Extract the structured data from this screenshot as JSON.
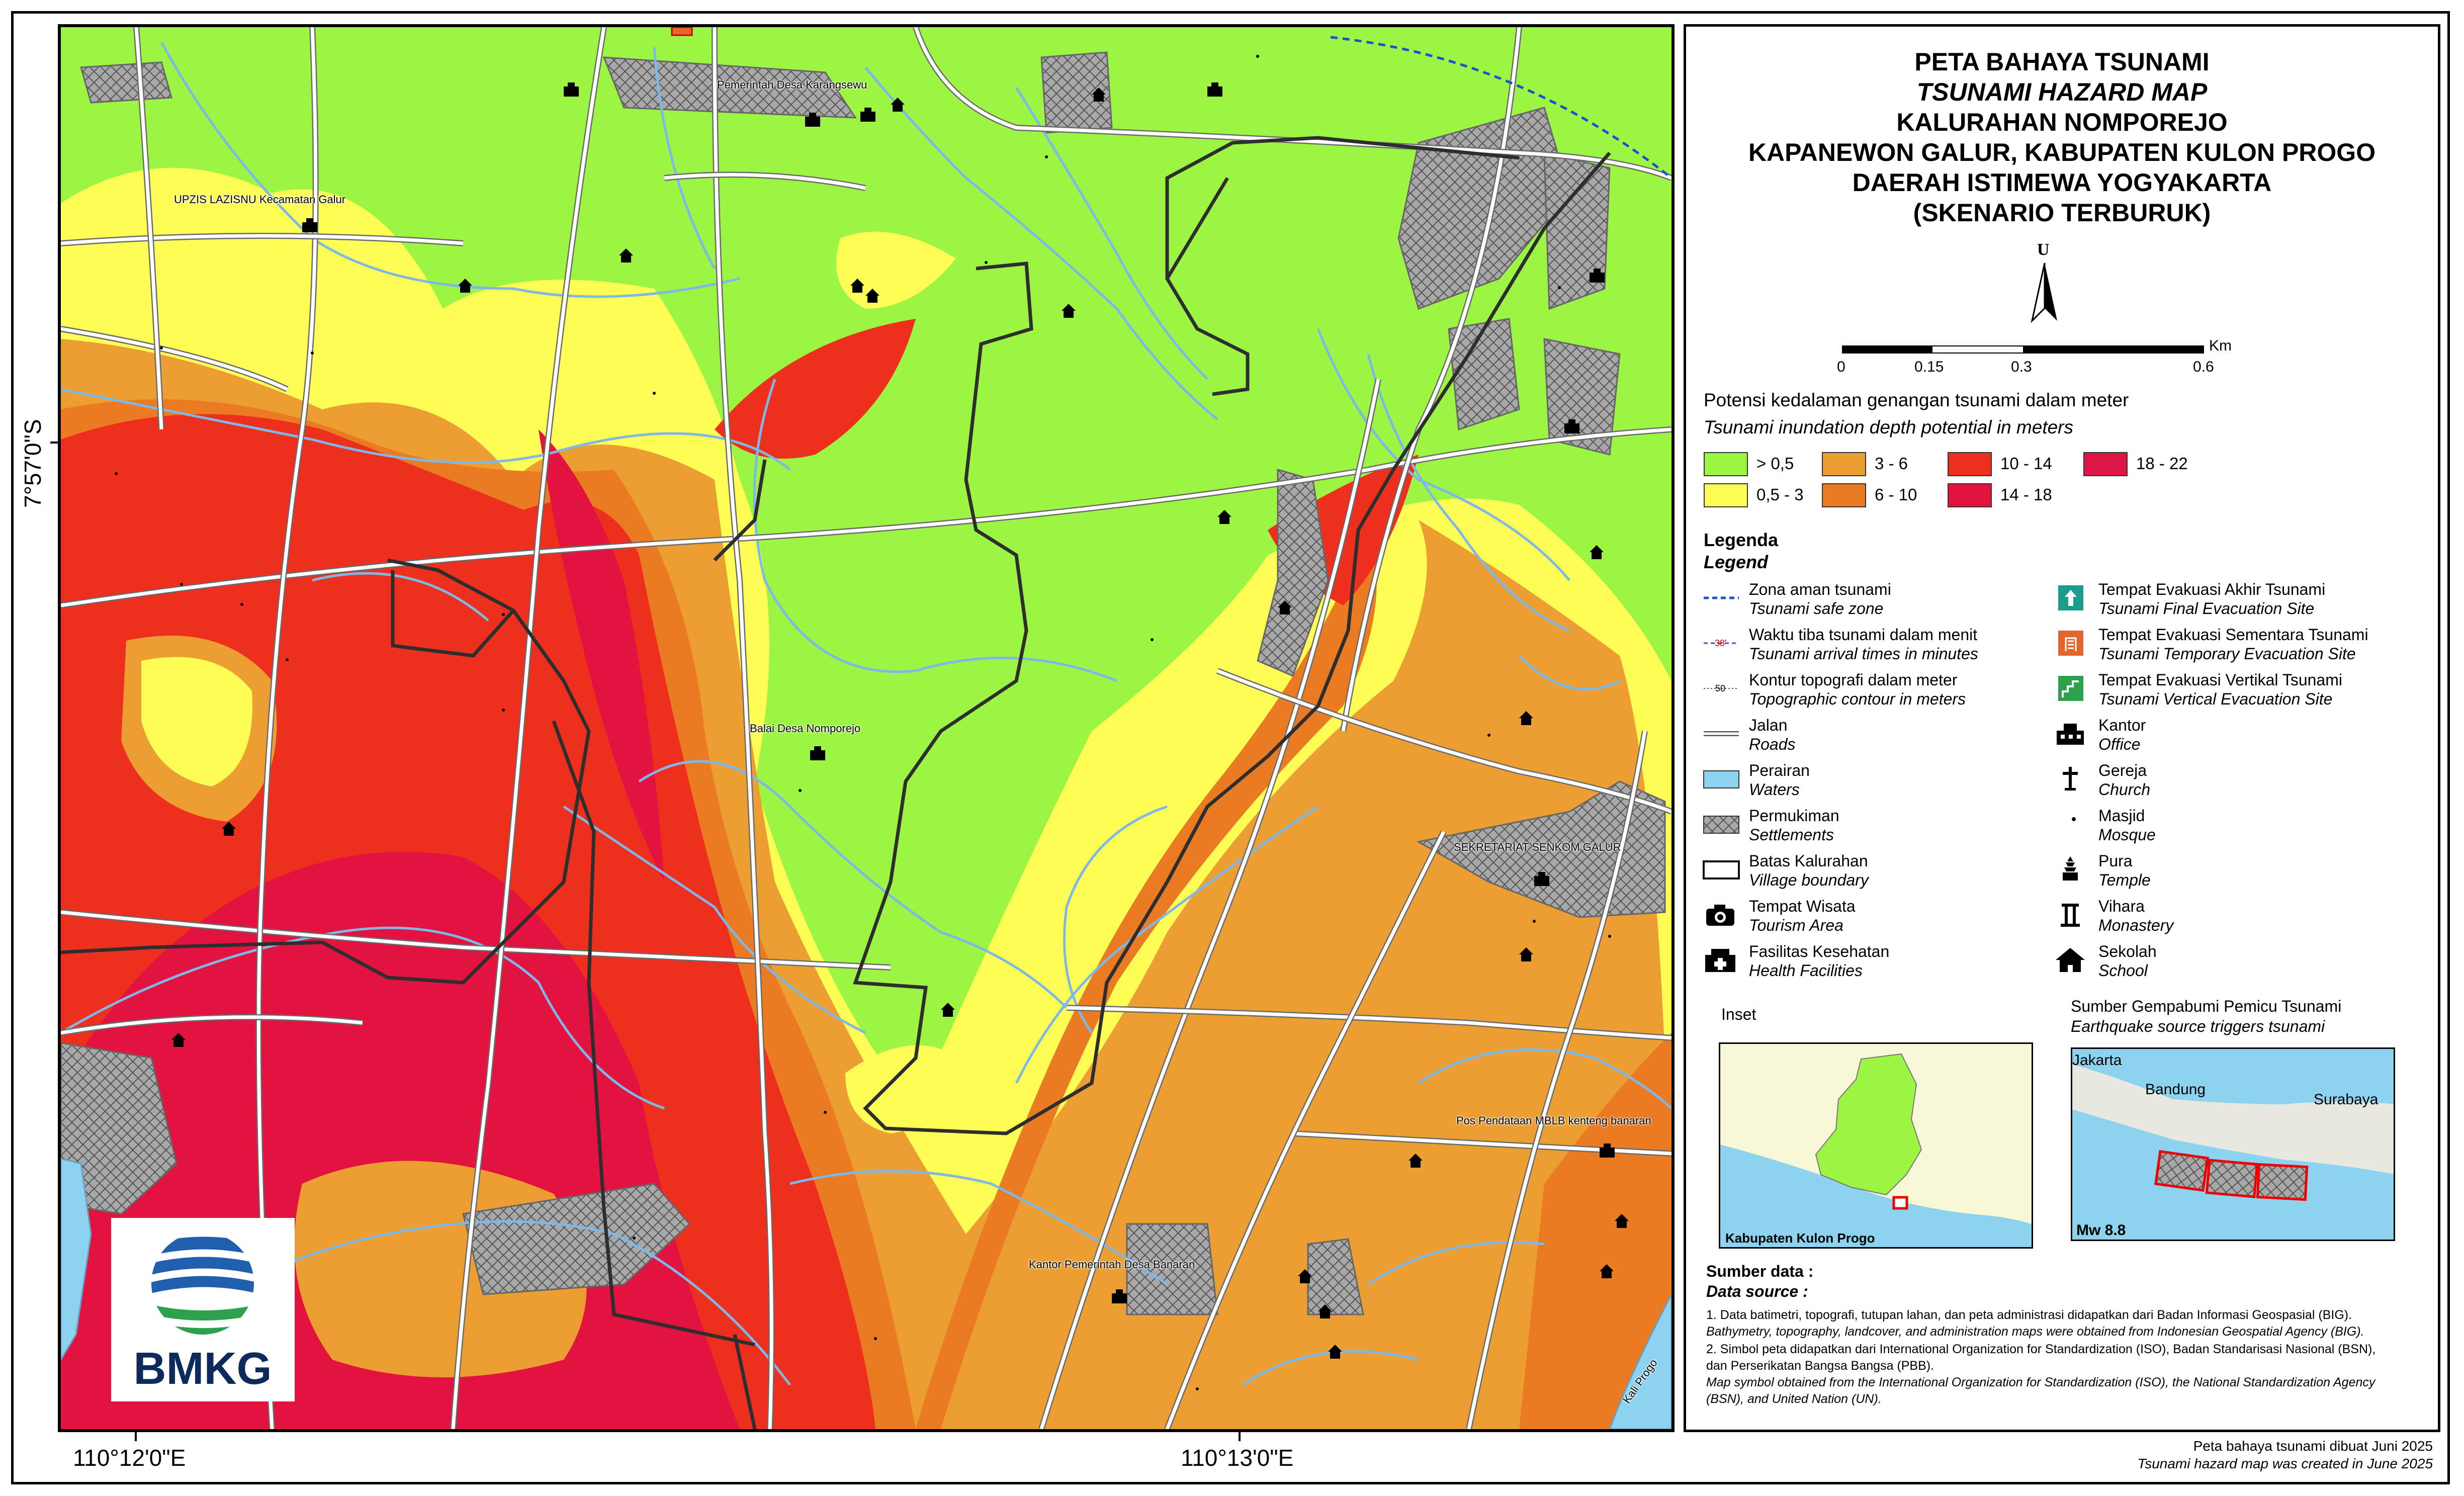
{
  "title": {
    "line1": "PETA BAHAYA TSUNAMI",
    "line2": "TSUNAMI HAZARD MAP",
    "line3": "KALURAHAN NOMPOREJO",
    "line4": "KAPANEWON GALUR, KABUPATEN KULON PROGO",
    "line5": "DAERAH ISTIMEWA YOGYAKARTA",
    "line6": "(SKENARIO TERBURUK)"
  },
  "north_arrow": "U",
  "scale": {
    "ticks": [
      "0",
      "0.15",
      "0.3",
      "0.6"
    ],
    "unit": "Km"
  },
  "coordinates": {
    "lat": "7°57'0\"S",
    "lon_left": "110°12'0\"E",
    "lon_right": "110°13'0\"E"
  },
  "depth_legend": {
    "heading": "Potensi kedalaman genangan tsunami dalam meter",
    "heading_en": "Tsunami inundation depth potential in meters",
    "classes": [
      {
        "label": "> 0,5",
        "color": "#9cf542"
      },
      {
        "label": "0,5 - 3",
        "color": "#fdfd55"
      },
      {
        "label": "3 - 6",
        "color": "#ec9e32"
      },
      {
        "label": "6 - 10",
        "color": "#eb7b23"
      },
      {
        "label": "10 - 14",
        "color": "#ee2f1e"
      },
      {
        "label": "14 - 18",
        "color": "#e3123f"
      },
      {
        "label": "18 - 22",
        "color": "#dd1745"
      }
    ]
  },
  "legend": {
    "heading": "Legenda",
    "heading_en": "Legend",
    "left": [
      {
        "id": "zona",
        "icon": "safe-zone-line-icon",
        "id_text": "Zona aman tsunami",
        "en_text": "Tsunami safe zone"
      },
      {
        "id": "waktu",
        "icon": "arrival-time-line-icon",
        "id_text": "Waktu tiba tsunami dalam menit",
        "en_text": "Tsunami arrival times in minutes",
        "sample": "38'"
      },
      {
        "id": "kontur",
        "icon": "contour-line-icon",
        "id_text": "Kontur topografi dalam meter",
        "en_text": "Topographic contour in meters",
        "sample": "50"
      },
      {
        "id": "jalan",
        "icon": "road-line-icon",
        "id_text": "Jalan",
        "en_text": "Roads"
      },
      {
        "id": "perairan",
        "icon": "waters-icon",
        "id_text": "Perairan",
        "en_text": "Waters"
      },
      {
        "id": "permukiman",
        "icon": "settlements-icon",
        "id_text": "Permukiman",
        "en_text": "Settlements"
      },
      {
        "id": "batas",
        "icon": "village-boundary-icon",
        "id_text": "Batas Kalurahan",
        "en_text": "Village boundary"
      },
      {
        "id": "wisata",
        "icon": "camera-icon",
        "id_text": "Tempat Wisata",
        "en_text": "Tourism Area"
      },
      {
        "id": "kesehatan",
        "icon": "health-facility-icon",
        "id_text": "Fasilitas Kesehatan",
        "en_text": "Health Facilities"
      }
    ],
    "right": [
      {
        "id": "teas",
        "icon": "final-evacuation-icon",
        "id_text": "Tempat Evakuasi Akhir Tsunami",
        "en_text": "Tsunami Final Evacuation Site"
      },
      {
        "id": "tesm",
        "icon": "temporary-evacuation-icon",
        "id_text": "Tempat Evakuasi Sementara Tsunami",
        "en_text": "Tsunami Temporary Evacuation Site"
      },
      {
        "id": "tevt",
        "icon": "vertical-evacuation-icon",
        "id_text": "Tempat Evakuasi Vertikal Tsunami",
        "en_text": "Tsunami Vertical Evacuation Site"
      },
      {
        "id": "kantor",
        "icon": "office-icon",
        "id_text": "Kantor",
        "en_text": "Office"
      },
      {
        "id": "gereja",
        "icon": "church-icon",
        "id_text": "Gereja",
        "en_text": "Church"
      },
      {
        "id": "masjid",
        "icon": "mosque-icon",
        "id_text": "Masjid",
        "en_text": "Mosque"
      },
      {
        "id": "pura",
        "icon": "temple-icon",
        "id_text": "Pura",
        "en_text": "Temple"
      },
      {
        "id": "vihara",
        "icon": "monastery-icon",
        "id_text": "Vihara",
        "en_text": "Monastery"
      },
      {
        "id": "sekolah",
        "icon": "school-icon",
        "id_text": "Sekolah",
        "en_text": "School"
      }
    ]
  },
  "inset": {
    "heading": "Inset",
    "label": "Kabupaten Kulon Progo"
  },
  "quake_source": {
    "heading": "Sumber Gempabumi Pemicu Tsunami",
    "heading_en": "Earthquake source triggers tsunami",
    "cities": [
      "Jakarta",
      "Bandung",
      "Surabaya"
    ],
    "magnitude": "Mw 8.8"
  },
  "data_source": {
    "heading": "Sumber data :",
    "heading_en": "Data source :",
    "item1": "1. Data batimetri, topografi, tutupan lahan, dan peta administrasi didapatkan dari Badan Informasi Geospasial (BIG).",
    "item1_en": "Bathymetry, topography, landcover, and administration maps were obtained from Indonesian Geospatial Agency (BIG).",
    "item2a": "2. Simbol peta didapatkan dari International Organization for Standardization (ISO), Badan Standarisasi Nasional (BSN),",
    "item2b": "dan Perserikatan Bangsa Bangsa (PBB).",
    "item2_en_a": "Map symbol obtained from the International Organization for Standardization (ISO), the National Standardization Agency",
    "item2_en_b": "(BSN), and United Nation (UN)."
  },
  "created": {
    "id": "Peta bahaya tsunami dibuat Juni 2025",
    "en": "Tsunami hazard map was created in June 2025"
  },
  "logo_text": "BMKG",
  "map_labels": {
    "karangsewu": "Pemerintah Desa Karangsewu",
    "upzis": "UPZIS LAZISNU Kecamatan Galur",
    "nomporejo": "Balai Desa Nomporejo",
    "senkom": "SEKRETARIAT SENKOM GALUR",
    "mblb": "Pos Pendataan MBLB kenteng banaran",
    "banaran": "Kantor Pemerintah Desa Banaran",
    "kali_progo": "Kali Progo"
  }
}
